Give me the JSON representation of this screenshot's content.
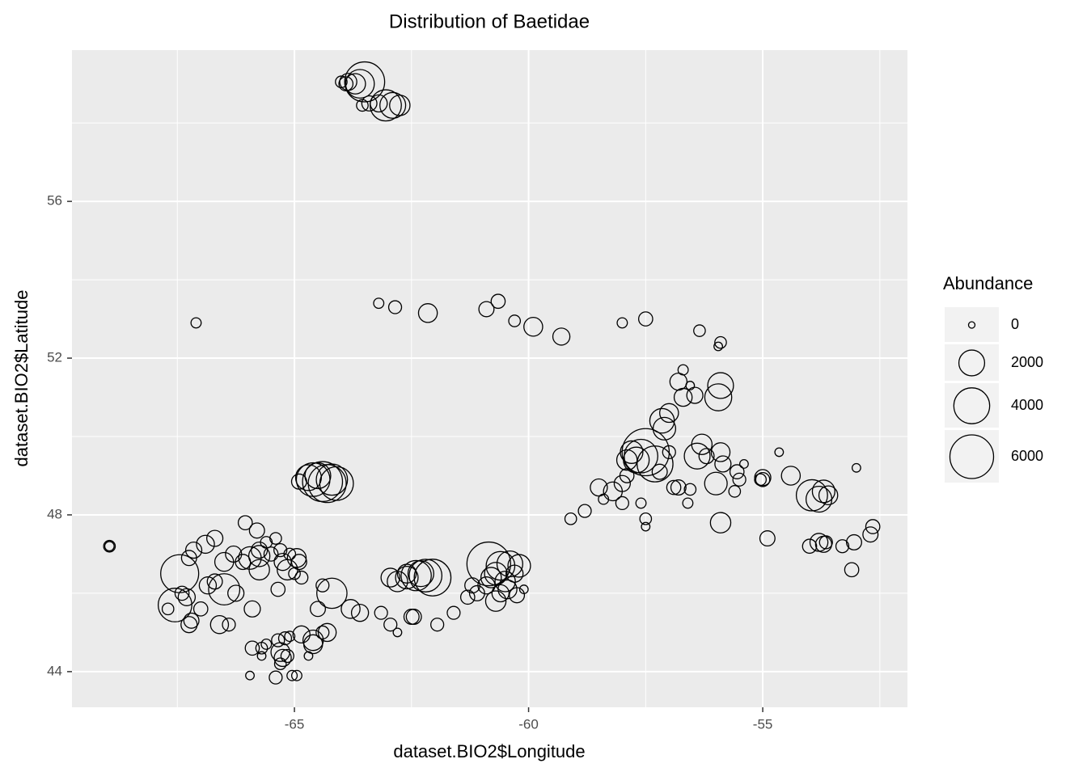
{
  "chart_data": {
    "type": "scatter",
    "title": "Distribution of Baetidae",
    "x_label": "dataset.BIO2$Longitude",
    "y_label": "dataset.BIO2$Latitude",
    "xlim": [
      -69.75,
      -51.91
    ],
    "ylim": [
      43.09,
      59.86
    ],
    "xticks": [
      -65,
      -60,
      -55
    ],
    "yticks": [
      44,
      48,
      52,
      56
    ],
    "grid": true,
    "size_legend": {
      "title": "Abundance",
      "ticks": [
        0,
        2000,
        4000,
        6000
      ]
    },
    "points": [
      [
        -64.0,
        59.05,
        300
      ],
      [
        -63.85,
        59.05,
        800
      ],
      [
        -63.6,
        59.0,
        2500
      ],
      [
        -63.5,
        59.05,
        5000
      ],
      [
        -63.7,
        59.0,
        1200
      ],
      [
        -63.9,
        59.0,
        500
      ],
      [
        -63.55,
        58.45,
        300
      ],
      [
        -63.4,
        58.5,
        600
      ],
      [
        -63.05,
        58.45,
        3000
      ],
      [
        -62.9,
        58.45,
        2000
      ],
      [
        -62.75,
        58.45,
        1200
      ],
      [
        -63.2,
        58.5,
        800
      ],
      [
        -67.1,
        52.9,
        200
      ],
      [
        -63.2,
        53.4,
        200
      ],
      [
        -62.85,
        53.3,
        400
      ],
      [
        -62.15,
        53.15,
        1000
      ],
      [
        -60.9,
        53.25,
        600
      ],
      [
        -60.65,
        53.45,
        500
      ],
      [
        -60.3,
        52.95,
        300
      ],
      [
        -59.9,
        52.8,
        1000
      ],
      [
        -59.3,
        52.55,
        800
      ],
      [
        -58.0,
        52.9,
        200
      ],
      [
        -57.5,
        53.0,
        500
      ],
      [
        -56.35,
        52.7,
        300
      ],
      [
        -55.9,
        52.4,
        300
      ],
      [
        -55.95,
        52.3,
        100
      ],
      [
        -56.8,
        51.4,
        800
      ],
      [
        -56.7,
        51.0,
        900
      ],
      [
        -56.45,
        51.05,
        700
      ],
      [
        -55.9,
        51.3,
        2000
      ],
      [
        -55.95,
        51.0,
        2200
      ],
      [
        -56.7,
        51.7,
        200
      ],
      [
        -56.55,
        51.3,
        100
      ],
      [
        -57.15,
        50.4,
        1800
      ],
      [
        -57.1,
        50.2,
        1500
      ],
      [
        -57.0,
        50.6,
        1000
      ],
      [
        -57.5,
        49.6,
        7000
      ],
      [
        -57.6,
        49.5,
        3500
      ],
      [
        -57.7,
        49.4,
        2000
      ],
      [
        -57.8,
        49.6,
        1500
      ],
      [
        -57.9,
        49.4,
        1200
      ],
      [
        -57.3,
        49.3,
        4000
      ],
      [
        -57.0,
        49.6,
        400
      ],
      [
        -57.2,
        49.1,
        600
      ],
      [
        -57.9,
        49.0,
        500
      ],
      [
        -58.0,
        48.8,
        700
      ],
      [
        -58.2,
        48.6,
        1000
      ],
      [
        -58.5,
        48.7,
        800
      ],
      [
        -58.4,
        48.4,
        200
      ],
      [
        -58.0,
        48.3,
        400
      ],
      [
        -57.6,
        48.3,
        200
      ],
      [
        -57.5,
        47.9,
        300
      ],
      [
        -57.5,
        47.7,
        100
      ],
      [
        -56.3,
        49.8,
        1200
      ],
      [
        -56.4,
        49.5,
        2000
      ],
      [
        -56.2,
        49.5,
        600
      ],
      [
        -55.9,
        49.6,
        1000
      ],
      [
        -55.85,
        49.3,
        700
      ],
      [
        -56.0,
        48.8,
        1500
      ],
      [
        -55.9,
        47.8,
        1200
      ],
      [
        -55.55,
        49.1,
        500
      ],
      [
        -55.5,
        48.9,
        400
      ],
      [
        -55.6,
        48.6,
        300
      ],
      [
        -55.4,
        49.3,
        100
      ],
      [
        -55.0,
        48.9,
        500
      ],
      [
        -55.0,
        48.95,
        700
      ],
      [
        -55.05,
        48.9,
        300
      ],
      [
        -54.65,
        49.6,
        100
      ],
      [
        -54.4,
        49.0,
        1000
      ],
      [
        -53.95,
        48.5,
        3000
      ],
      [
        -53.8,
        48.4,
        2000
      ],
      [
        -53.7,
        48.6,
        1500
      ],
      [
        -53.6,
        48.5,
        1000
      ],
      [
        -53.0,
        49.2,
        100
      ],
      [
        -56.8,
        48.7,
        600
      ],
      [
        -56.55,
        48.65,
        300
      ],
      [
        -56.6,
        48.3,
        200
      ],
      [
        -56.9,
        48.7,
        500
      ],
      [
        -58.8,
        48.1,
        400
      ],
      [
        -59.1,
        47.9,
        300
      ],
      [
        -54.9,
        47.4,
        600
      ],
      [
        -54.0,
        47.2,
        500
      ],
      [
        -53.8,
        47.3,
        900
      ],
      [
        -53.7,
        47.25,
        700
      ],
      [
        -53.65,
        47.3,
        400
      ],
      [
        -53.3,
        47.2,
        400
      ],
      [
        -53.05,
        47.3,
        600
      ],
      [
        -52.7,
        47.5,
        600
      ],
      [
        -52.65,
        47.7,
        500
      ],
      [
        -53.1,
        46.6,
        500
      ],
      [
        -68.95,
        47.2,
        300
      ],
      [
        -68.95,
        47.2,
        150
      ],
      [
        -67.45,
        46.5,
        4500
      ],
      [
        -67.55,
        45.7,
        3500
      ],
      [
        -67.7,
        45.6,
        300
      ],
      [
        -67.2,
        45.3,
        600
      ],
      [
        -67.25,
        45.2,
        700
      ],
      [
        -67.3,
        45.9,
        800
      ],
      [
        -67.4,
        46.0,
        500
      ],
      [
        -67.0,
        45.6,
        500
      ],
      [
        -67.25,
        46.9,
        600
      ],
      [
        -67.15,
        47.1,
        700
      ],
      [
        -66.9,
        47.25,
        900
      ],
      [
        -66.7,
        47.4,
        700
      ],
      [
        -66.85,
        46.2,
        800
      ],
      [
        -66.7,
        46.3,
        600
      ],
      [
        -66.5,
        46.1,
        3000
      ],
      [
        -66.6,
        45.2,
        900
      ],
      [
        -66.4,
        45.2,
        400
      ],
      [
        -66.5,
        46.8,
        1000
      ],
      [
        -66.3,
        47.0,
        700
      ],
      [
        -66.1,
        46.8,
        600
      ],
      [
        -65.95,
        46.9,
        1500
      ],
      [
        -65.75,
        46.95,
        1300
      ],
      [
        -65.75,
        46.6,
        1200
      ],
      [
        -65.75,
        47.1,
        700
      ],
      [
        -66.05,
        47.8,
        500
      ],
      [
        -65.8,
        47.6,
        600
      ],
      [
        -65.9,
        45.6,
        700
      ],
      [
        -66.25,
        46.0,
        700
      ],
      [
        -65.5,
        47.0,
        500
      ],
      [
        -65.3,
        47.1,
        400
      ],
      [
        -65.25,
        46.8,
        800
      ],
      [
        -64.95,
        46.9,
        1000
      ],
      [
        -64.9,
        46.8,
        600
      ],
      [
        -65.1,
        47.0,
        300
      ],
      [
        -65.15,
        46.6,
        1200
      ],
      [
        -65.0,
        46.5,
        300
      ],
      [
        -64.85,
        46.4,
        400
      ],
      [
        -65.6,
        47.3,
        300
      ],
      [
        -65.4,
        47.4,
        300
      ],
      [
        -65.35,
        46.1,
        500
      ],
      [
        -64.4,
        46.2,
        400
      ],
      [
        -64.2,
        46.0,
        2800
      ],
      [
        -64.5,
        45.6,
        600
      ],
      [
        -63.8,
        45.6,
        1000
      ],
      [
        -63.6,
        45.5,
        800
      ],
      [
        -63.15,
        45.5,
        400
      ],
      [
        -62.95,
        45.2,
        400
      ],
      [
        -62.8,
        45.0,
        100
      ],
      [
        -62.5,
        45.4,
        600
      ],
      [
        -62.45,
        45.4,
        600
      ],
      [
        -61.95,
        45.2,
        400
      ],
      [
        -61.6,
        45.5,
        400
      ],
      [
        -61.3,
        45.9,
        500
      ],
      [
        -61.1,
        46.0,
        600
      ],
      [
        -60.9,
        46.2,
        800
      ],
      [
        -61.2,
        46.2,
        600
      ],
      [
        -60.8,
        46.4,
        1200
      ],
      [
        -65.9,
        44.6,
        500
      ],
      [
        -65.7,
        44.6,
        300
      ],
      [
        -65.6,
        44.7,
        200
      ],
      [
        -65.35,
        44.8,
        400
      ],
      [
        -65.2,
        44.85,
        400
      ],
      [
        -65.1,
        44.9,
        200
      ],
      [
        -65.3,
        44.5,
        1000
      ],
      [
        -65.25,
        44.35,
        800
      ],
      [
        -65.3,
        44.2,
        300
      ],
      [
        -65.15,
        44.4,
        400
      ],
      [
        -64.85,
        44.95,
        800
      ],
      [
        -64.6,
        44.7,
        1000
      ],
      [
        -64.6,
        44.8,
        1200
      ],
      [
        -64.3,
        45.0,
        900
      ],
      [
        -64.4,
        45.0,
        400
      ],
      [
        -64.7,
        44.4,
        100
      ],
      [
        -65.95,
        43.9,
        100
      ],
      [
        -65.4,
        43.85,
        400
      ],
      [
        -65.05,
        43.9,
        200
      ],
      [
        -64.95,
        43.9,
        200
      ],
      [
        -65.7,
        44.4,
        100
      ],
      [
        -64.6,
        48.9,
        3500
      ],
      [
        -64.4,
        48.85,
        5000
      ],
      [
        -64.3,
        48.8,
        4500
      ],
      [
        -64.2,
        48.9,
        3000
      ],
      [
        -64.5,
        49.0,
        2000
      ],
      [
        -64.7,
        48.95,
        2000
      ],
      [
        -64.9,
        48.85,
        600
      ],
      [
        -64.1,
        48.8,
        3500
      ],
      [
        -62.95,
        46.4,
        1000
      ],
      [
        -62.8,
        46.3,
        1200
      ],
      [
        -62.6,
        46.4,
        1500
      ],
      [
        -62.4,
        46.45,
        2800
      ],
      [
        -62.2,
        46.45,
        3300
      ],
      [
        -62.05,
        46.4,
        4200
      ],
      [
        -62.3,
        46.5,
        2000
      ],
      [
        -62.6,
        46.5,
        1000
      ],
      [
        -60.85,
        46.75,
        6000
      ],
      [
        -60.6,
        46.7,
        2500
      ],
      [
        -60.4,
        46.75,
        2000
      ],
      [
        -60.2,
        46.7,
        1500
      ],
      [
        -60.7,
        46.5,
        1500
      ],
      [
        -60.5,
        46.3,
        1200
      ],
      [
        -60.45,
        46.1,
        1000
      ],
      [
        -60.7,
        45.8,
        1200
      ],
      [
        -60.6,
        46.0,
        800
      ],
      [
        -60.3,
        46.5,
        800
      ],
      [
        -60.1,
        46.1,
        100
      ],
      [
        -60.25,
        45.95,
        600
      ]
    ]
  }
}
